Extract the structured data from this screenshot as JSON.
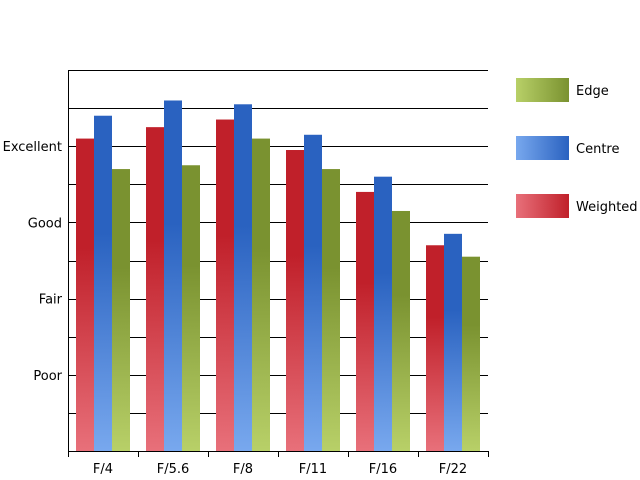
{
  "chart_data": {
    "type": "bar",
    "title": "",
    "xlabel": "",
    "ylabel": "",
    "categories": [
      "F/4",
      "F/5.6",
      "F/8",
      "F/11",
      "F/16",
      "F/22"
    ],
    "y_tick_labels": [
      "Poor",
      "Fair",
      "Good",
      "Excellent"
    ],
    "y_tick_values": [
      1,
      2,
      3,
      4
    ],
    "ylim": [
      0,
      5
    ],
    "grid": true,
    "legend_position": "right",
    "series": [
      {
        "name": "Weighted",
        "color": "#c0202a",
        "color_light": "#e8707a",
        "values": [
          4.1,
          4.25,
          4.35,
          3.95,
          3.4,
          2.7
        ]
      },
      {
        "name": "Centre",
        "color": "#2a62c0",
        "color_light": "#78a8ee",
        "values": [
          4.4,
          4.6,
          4.55,
          4.15,
          3.6,
          2.85
        ]
      },
      {
        "name": "Edge",
        "color": "#7a9230",
        "color_light": "#b8d068",
        "values": [
          3.7,
          3.75,
          4.1,
          3.7,
          3.15,
          2.55
        ]
      }
    ],
    "legend_order": [
      "Edge",
      "Centre",
      "Weighted"
    ]
  }
}
